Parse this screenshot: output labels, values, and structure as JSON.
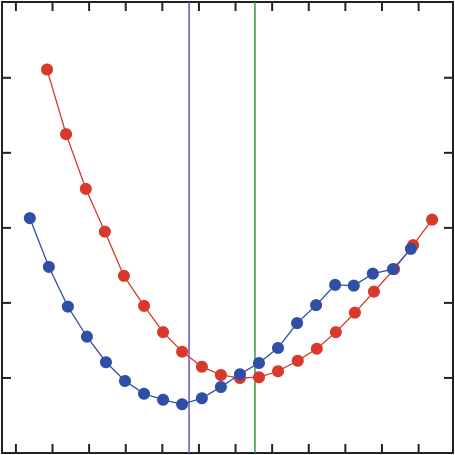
{
  "chart_data": {
    "type": "line",
    "xlim": [
      -0.38,
      11.94
    ],
    "xticks": [
      0,
      1,
      2,
      3,
      4,
      5,
      6,
      7,
      8,
      9,
      10,
      11
    ],
    "ylim": [
      0,
      6.01
    ],
    "yticks": [
      1,
      2,
      3,
      4,
      5
    ],
    "series": [
      {
        "color": "#d8392b",
        "x": [
          0.85,
          1.37,
          1.91,
          2.43,
          2.95,
          3.5,
          4.02,
          4.54,
          5.08,
          5.6,
          6.12,
          6.64,
          7.16,
          7.7,
          8.22,
          8.74,
          9.26,
          9.78,
          10.33,
          10.85,
          11.37
        ],
        "values": [
          5.11,
          4.25,
          3.52,
          2.95,
          2.36,
          1.96,
          1.61,
          1.35,
          1.15,
          1.04,
          1.0,
          1.01,
          1.09,
          1.23,
          1.39,
          1.61,
          1.87,
          2.15,
          2.45,
          2.77,
          3.11
        ]
      },
      {
        "color": "#2f4ea6",
        "x": [
          0.38,
          0.9,
          1.42,
          1.94,
          2.46,
          2.98,
          3.5,
          4.02,
          4.54,
          5.08,
          5.6,
          6.12,
          6.64,
          7.16,
          7.68,
          8.2,
          8.72,
          9.23,
          9.75,
          10.3,
          10.79
        ],
        "values": [
          3.13,
          2.48,
          1.95,
          1.55,
          1.21,
          0.96,
          0.79,
          0.71,
          0.65,
          0.73,
          0.88,
          1.05,
          1.2,
          1.4,
          1.73,
          1.97,
          2.24,
          2.23,
          2.39,
          2.45,
          2.72
        ]
      }
    ],
    "vlines": [
      {
        "x": 4.73,
        "color": "#6a4fc8"
      },
      {
        "x": 6.53,
        "color": "#3a9a3a"
      }
    ]
  }
}
